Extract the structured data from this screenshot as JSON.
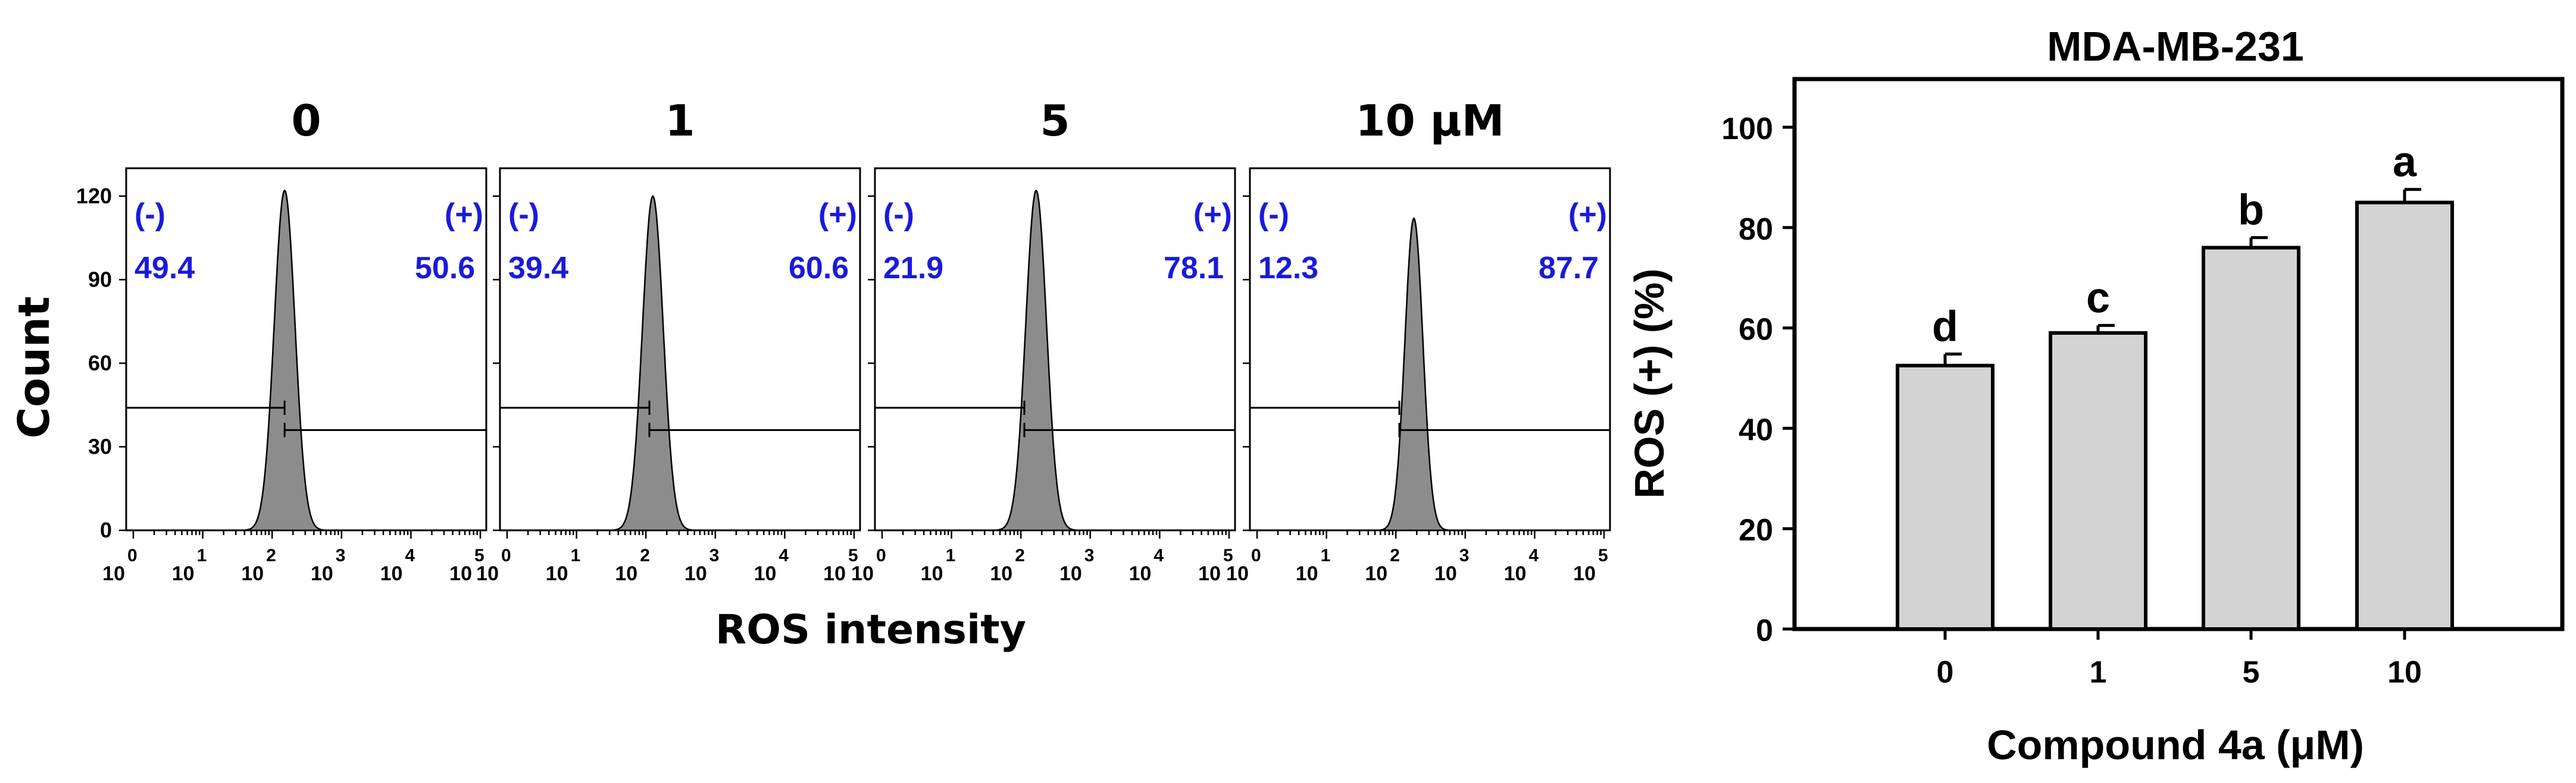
{
  "chart_data": [
    {
      "type": "histogram",
      "ylabel": "Count",
      "xlabel": "ROS intensity",
      "y_ticks": [
        "0",
        "30",
        "60",
        "90",
        "120"
      ],
      "y_range": [
        0,
        130
      ],
      "x_scale": "log",
      "x_range": [
        1,
        100000
      ],
      "x_tick_base": "10",
      "x_tick_exponents": [
        "0",
        "1",
        "2",
        "3",
        "4",
        "5"
      ],
      "fill_color": "#8c8c8c",
      "label_color": "#1a1adc",
      "panels": [
        {
          "title": "0",
          "neg_label": "(-)",
          "pos_label": "(+)",
          "neg_value": "49.4",
          "pos_value": "50.6",
          "peak_log": 2.18,
          "sigma": 0.15,
          "peak_count": 122,
          "gate_log": 2.18
        },
        {
          "title": "1",
          "neg_label": "(-)",
          "pos_label": "(+)",
          "neg_value": "39.4",
          "pos_value": "60.6",
          "peak_log": 2.1,
          "sigma": 0.15,
          "peak_count": 120,
          "gate_log": 2.05
        },
        {
          "title": "5",
          "neg_label": "(-)",
          "pos_label": "(+)",
          "neg_value": "21.9",
          "pos_value": "78.1",
          "peak_log": 2.22,
          "sigma": 0.15,
          "peak_count": 122,
          "gate_log": 2.05
        },
        {
          "title": "10 μM",
          "neg_label": "(-)",
          "pos_label": "(+)",
          "neg_value": "12.3",
          "pos_value": "87.7",
          "peak_log": 2.26,
          "sigma": 0.13,
          "peak_count": 112,
          "gate_log": 2.05
        }
      ]
    },
    {
      "type": "bar",
      "title": "MDA-MB-231",
      "xlabel": "Compound 4a (μM)",
      "ylabel": "ROS (+) (%)",
      "categories": [
        "0",
        "1",
        "5",
        "10"
      ],
      "values": [
        52.5,
        59,
        76,
        85
      ],
      "errors": [
        2.3,
        1.5,
        2.0,
        2.6
      ],
      "significance": [
        "d",
        "c",
        "b",
        "a"
      ],
      "ylim": [
        0,
        100
      ],
      "y_ticks": [
        "0",
        "20",
        "40",
        "60",
        "80",
        "100"
      ],
      "bar_color": "#d3d3d3",
      "grid": false
    }
  ]
}
